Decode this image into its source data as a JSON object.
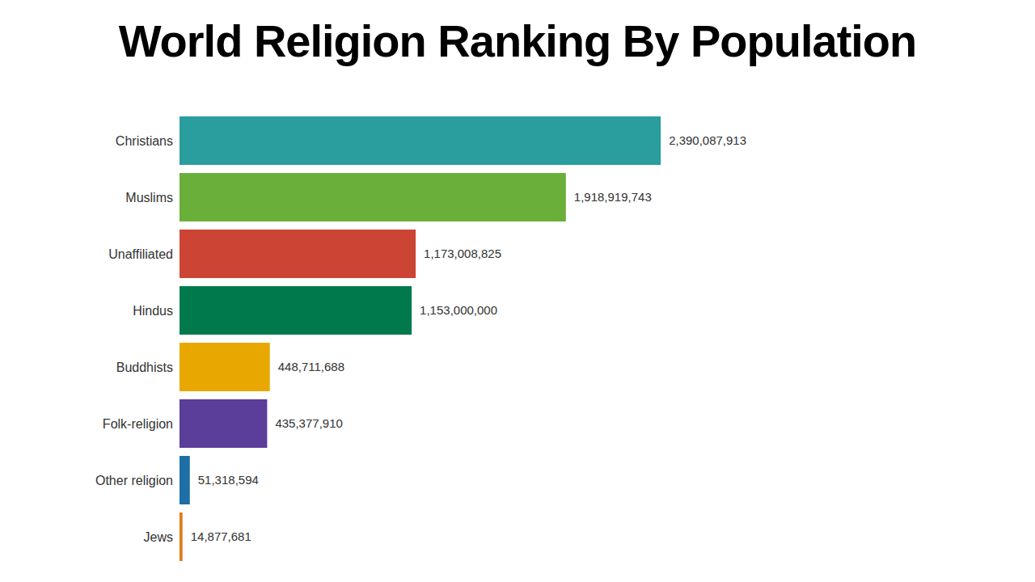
{
  "chart_data": {
    "type": "bar",
    "title": "World Religion Ranking By Population",
    "orientation": "horizontal",
    "categories": [
      "Christians",
      "Muslims",
      "Unaffiliated",
      "Hindus",
      "Buddhists",
      "Folk-religion",
      "Other religion",
      "Jews"
    ],
    "values": [
      2390087913,
      1918919743,
      1173008825,
      1153000000,
      448711688,
      435377910,
      51318594,
      14877681
    ],
    "value_labels": [
      "2,390,087,913",
      "1,918,919,743",
      "1,173,008,825",
      "1,153,000,000",
      "448,711,688",
      "435,377,910",
      "51,318,594",
      "14,877,681"
    ],
    "colors": [
      "#2a9d9f",
      "#6aaf3a",
      "#cc4433",
      "#007a4d",
      "#e8a800",
      "#5b3d9a",
      "#1f6ea5",
      "#e07a1a"
    ],
    "xlim": [
      0,
      3000000000
    ],
    "data_labels": true,
    "tick_labels": "y",
    "grid": false
  }
}
